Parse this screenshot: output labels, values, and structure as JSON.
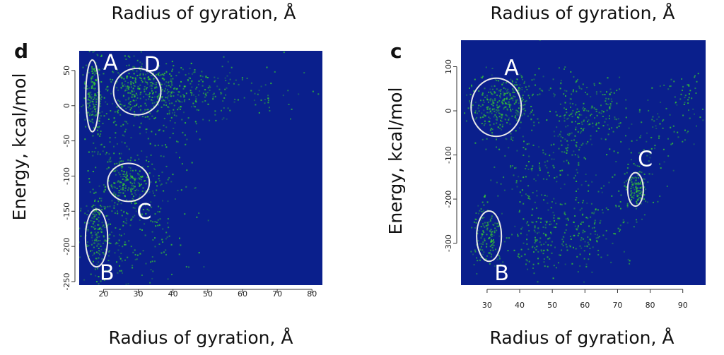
{
  "chart_data": [
    {
      "type": "heatmap",
      "panel_label": "d",
      "top_text": "Radius of gyration, Å",
      "xlabel": "Radius of gyration, Å",
      "ylabel": "Energy, kcal/mol",
      "xlim": [
        13,
        83
      ],
      "ylim": [
        -255,
        78
      ],
      "xticks": [
        20,
        30,
        40,
        50,
        60,
        70,
        80
      ],
      "yticks": [
        50,
        0,
        -50,
        -100,
        -150,
        -200,
        -250
      ],
      "background_color": "#0a1f8c",
      "density_color": "#39d62a",
      "clusters": [
        {
          "label": "A",
          "cx": 16.8,
          "cy": 14,
          "rx": 1.9,
          "ry": 51
        },
        {
          "label": "D",
          "cx": 29.7,
          "cy": 20,
          "rx": 6.8,
          "ry": 33
        },
        {
          "label": "C",
          "cx": 27.2,
          "cy": -109,
          "rx": 6.0,
          "ry": 27
        },
        {
          "label": "B",
          "cx": 18.0,
          "cy": -188,
          "rx": 3.2,
          "ry": 41
        }
      ],
      "cluster_label_positions": [
        {
          "label": "A",
          "x": 22.0,
          "y": 60
        },
        {
          "label": "D",
          "x": 34.0,
          "y": 57
        },
        {
          "label": "C",
          "x": 31.7,
          "y": -152
        },
        {
          "label": "B",
          "x": 21.0,
          "y": -239
        }
      ]
    },
    {
      "type": "heatmap",
      "panel_label": "c",
      "top_text": "Radius of gyration, Å",
      "xlabel": "Radius of gyration, Å",
      "ylabel": "Energy, kcal/mol",
      "xlim": [
        22,
        97
      ],
      "ylim": [
        -395,
        160
      ],
      "xticks": [
        30,
        40,
        50,
        60,
        70,
        80,
        90
      ],
      "yticks": [
        100,
        0,
        -100,
        -200,
        -300
      ],
      "background_color": "#0a1f8c",
      "density_color": "#39d62a",
      "clusters": [
        {
          "label": "A",
          "cx": 32.8,
          "cy": 8,
          "rx": 7.7,
          "ry": 66
        },
        {
          "label": "C",
          "cx": 75.5,
          "cy": -178,
          "rx": 2.4,
          "ry": 38
        },
        {
          "label": "B",
          "cx": 30.6,
          "cy": -284,
          "rx": 3.8,
          "ry": 57
        }
      ],
      "cluster_label_positions": [
        {
          "label": "A",
          "x": 37.5,
          "y": 95
        },
        {
          "label": "C",
          "x": 78.5,
          "y": -112
        },
        {
          "label": "B",
          "x": 34.5,
          "y": -370
        }
      ]
    }
  ]
}
